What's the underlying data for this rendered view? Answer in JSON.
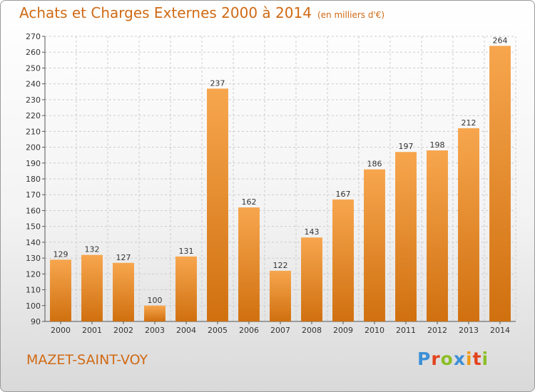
{
  "header": {
    "title": "Achats et Charges Externes 2000 à 2014",
    "unit": "(en milliers d'€)"
  },
  "footer": {
    "town": "MAZET-SAINT-VOY",
    "brand": "Proxiti",
    "brand_colors": [
      "#3d8fd6",
      "#e2431e",
      "#8cbf26",
      "#3d8fd6",
      "#f29a17",
      "#e2431e",
      "#8cbf26"
    ]
  },
  "colors": {
    "title": "#d06a14",
    "bar_light": "#f7a64e",
    "bar_dark": "#d0700f",
    "grid": "#cccccc"
  },
  "chart_data": {
    "type": "bar",
    "title": "Achats et Charges Externes 2000 à 2014",
    "subtitle": "(en milliers d'€)",
    "xlabel": "",
    "ylabel": "",
    "categories": [
      "2000",
      "2001",
      "2002",
      "2003",
      "2004",
      "2005",
      "2006",
      "2007",
      "2008",
      "2009",
      "2010",
      "2011",
      "2012",
      "2013",
      "2014"
    ],
    "values": [
      129,
      132,
      127,
      100,
      131,
      237,
      162,
      122,
      143,
      167,
      186,
      197,
      198,
      212,
      264
    ],
    "ylim": [
      90,
      270
    ],
    "yticks": [
      90,
      100,
      110,
      120,
      130,
      140,
      150,
      160,
      170,
      180,
      190,
      200,
      210,
      220,
      230,
      240,
      250,
      260,
      270
    ],
    "grid": true,
    "legend": "none"
  }
}
